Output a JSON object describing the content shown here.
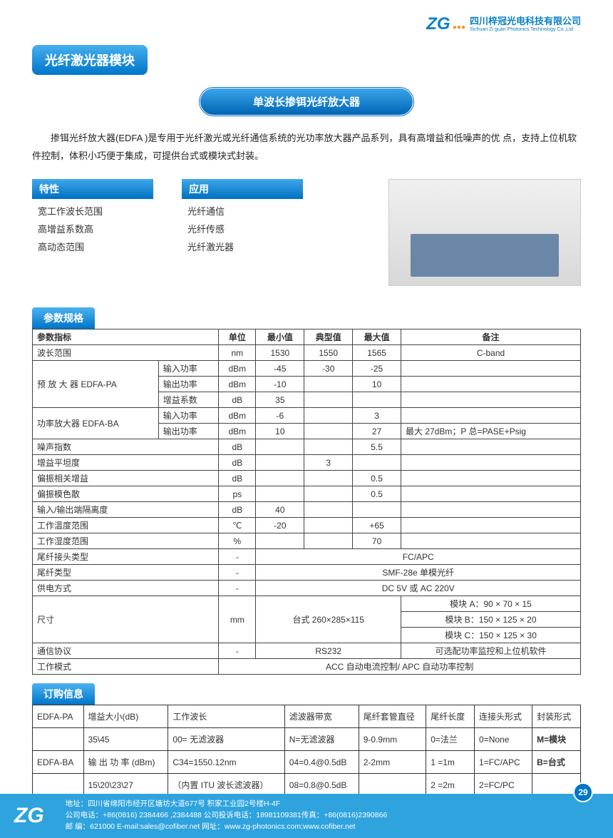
{
  "company": {
    "logo_text": "ZG",
    "name_cn": "四川梓冠光电科技有限公司",
    "name_en": "Sichuan Zi guan Photonics Technology Co.,Ltd"
  },
  "module_title": "光纤激光器模块",
  "subtitle": "单波长掺铒光纤放大器",
  "intro": "掺铒光纤放大器(EDFA )是专用于光纤激光或光纤通信系统的光功率放大器产品系列，具有高增益和低噪声的优 点，支持上位机软件控制，体积小巧便于集成，可提供台式或模块式封装。",
  "features": {
    "title": "特性",
    "items": [
      "宽工作波长范围",
      "高增益系数高",
      "高动态范围"
    ]
  },
  "applications": {
    "title": "应用",
    "items": [
      "光纤通信",
      "光纤传感",
      "光纤激光器"
    ]
  },
  "spec_title": "参数规格",
  "spec": {
    "headers": [
      "参数指标",
      "单位",
      "最小值",
      "典型值",
      "最大值",
      "备注"
    ],
    "rows": [
      {
        "cells": [
          "波长范围",
          "nm",
          "1530",
          "1550",
          "1565",
          "C-band"
        ],
        "label_span": 2
      },
      {
        "group": "预 放 大 器 EDFA-PA",
        "sub": "输入功率",
        "cells": [
          "dBm",
          "-45",
          "-30",
          "-25",
          ""
        ]
      },
      {
        "sub": "输出功率",
        "cells": [
          "dBm",
          "-10",
          "",
          "10",
          ""
        ]
      },
      {
        "sub": "增益系数",
        "cells": [
          "dB",
          "35",
          "",
          "",
          ""
        ]
      },
      {
        "group": "功率放大器 EDFA-BA",
        "sub": "输入功率",
        "cells": [
          "dBm",
          "-6",
          "",
          "3",
          ""
        ]
      },
      {
        "sub": "输出功率",
        "cells": [
          "dBm",
          "10",
          "",
          "27",
          "最大 27dBm；P 总=PASE+Psig"
        ]
      },
      {
        "cells": [
          "噪声指数",
          "dB",
          "",
          "",
          "5.5",
          ""
        ],
        "label_span": 2
      },
      {
        "cells": [
          "增益平坦度",
          "dB",
          "",
          "3",
          "",
          ""
        ],
        "label_span": 2
      },
      {
        "cells": [
          "偏振相关增益",
          "dB",
          "",
          "",
          "0.5",
          ""
        ],
        "label_span": 2
      },
      {
        "cells": [
          "偏振模色散",
          "ps",
          "",
          "",
          "0.5",
          ""
        ],
        "label_span": 2
      },
      {
        "cells": [
          "输入/输出端隔离度",
          "dB",
          "40",
          "",
          "",
          ""
        ],
        "label_span": 2
      },
      {
        "cells": [
          "工作温度范围",
          "℃",
          "-20",
          "",
          "+65",
          ""
        ],
        "label_span": 2
      },
      {
        "cells": [
          "工作湿度范围",
          "%",
          "",
          "",
          "70",
          ""
        ],
        "label_span": 2
      },
      {
        "cells": [
          "尾纤接头类型",
          "-",
          "FC/APC"
        ],
        "label_span": 2,
        "merge_mid": true
      },
      {
        "cells": [
          "尾纤类型",
          "-",
          "SMF-28e 单模光纤"
        ],
        "label_span": 2,
        "merge_mid": true
      },
      {
        "cells": [
          "供电方式",
          "-",
          "DC 5V 或 AC 220V"
        ],
        "label_span": 2,
        "merge_mid": true
      }
    ],
    "size_row": {
      "label": "尺寸",
      "unit": "mm",
      "mid": "台式 260×285×115",
      "notes": [
        "模块 A：90 × 70 × 15",
        "模块 B：150 × 125 × 20",
        "模块 C：150 × 125 × 30"
      ]
    },
    "comm": {
      "label": "通信协议",
      "unit": "-",
      "mid": "RS232",
      "note": "可选配功率监控和上位机软件"
    },
    "mode": {
      "label": "工作模式",
      "mid": "ACC 自动电流控制/ APC 自动功率控制"
    }
  },
  "order_title": "订购信息",
  "order": {
    "headers": [
      "EDFA-PA",
      "增益大小(dB)",
      "工作波长",
      "滤波器带宽",
      "尾纤套管直径",
      "尾纤长度",
      "连接头形式",
      "封装形式"
    ],
    "r1": [
      "",
      "35\\45",
      "00= 无滤波器",
      "N=无滤波器",
      "9-0.9mm",
      "0=法兰",
      "0=None",
      "M=模块"
    ],
    "r2": [
      "EDFA-BA",
      "输 出 功 率 (dBm)",
      "C34=1550.12nm",
      "04=0.4@0.5dB",
      "2-2mm",
      "1 =1m",
      "1=FC/APC",
      "B=台式"
    ],
    "r3": [
      "",
      "15\\20\\23\\27",
      "（内置 ITU 波长滤波器）",
      "08=0.8@0.5dB",
      "",
      "2 =2m",
      "2=FC/PC",
      ""
    ]
  },
  "footer": {
    "address": "地址：四川省绵阳市经开区塘坊大道677号 积家工业园2号楼H-4F",
    "phone": "公司电话：+86(0816) 2384466 ,2384488  公司投诉电话：18981109381传真：+86(0816)2390866",
    "email": "邮 编：621000 E-mail:sales@cofiber.net  网址：www.zg-photonics.com;www.cofiber.net"
  },
  "page_number": "29"
}
